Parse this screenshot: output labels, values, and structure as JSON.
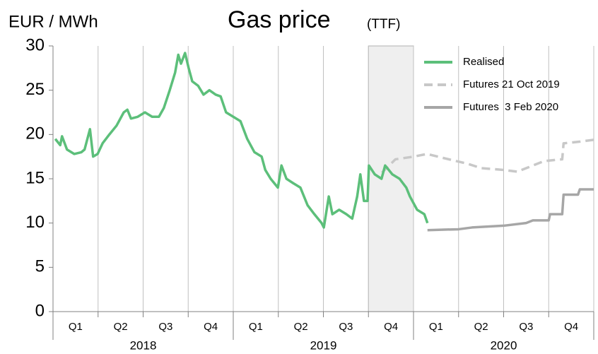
{
  "chart_data": {
    "type": "line",
    "title": "Gas price",
    "title_suffix": "(TTF)",
    "y_label": "EUR / MWh",
    "categories": [
      "Q1",
      "Q2",
      "Q3",
      "Q4",
      "Q1",
      "Q2",
      "Q3",
      "Q4",
      "Q1",
      "Q2",
      "Q3",
      "Q4"
    ],
    "years": [
      "2018",
      "2019",
      "2020"
    ],
    "xlim": [
      0,
      12
    ],
    "xticks": [
      0,
      1,
      2,
      3,
      4,
      5,
      6,
      7,
      8,
      9,
      10,
      11,
      12
    ],
    "ylim": [
      0,
      30
    ],
    "yticks": [
      0,
      5,
      10,
      15,
      20,
      25,
      30
    ],
    "highlight": [
      7,
      8
    ],
    "highlight_color": "#efefef",
    "legend": "top-right",
    "series": [
      {
        "name": "Realised",
        "color": "#5cbf7a",
        "dash": false,
        "x": [
          0.05,
          0.16,
          0.2,
          0.31,
          0.47,
          0.63,
          0.7,
          0.82,
          0.89,
          0.99,
          1.1,
          1.25,
          1.41,
          1.57,
          1.65,
          1.73,
          1.88,
          2.04,
          2.2,
          2.35,
          2.46,
          2.59,
          2.71,
          2.78,
          2.84,
          2.93,
          3.01,
          3.09,
          3.22,
          3.34,
          3.47,
          3.61,
          3.72,
          3.84,
          4.0,
          4.16,
          4.31,
          4.47,
          4.63,
          4.71,
          4.83,
          4.99,
          5.07,
          5.18,
          5.33,
          5.49,
          5.65,
          5.8,
          5.96,
          6.01,
          6.12,
          6.2,
          6.35,
          6.51,
          6.64,
          6.75,
          6.82,
          6.9,
          6.98,
          7.01,
          7.14,
          7.29,
          7.37,
          7.53,
          7.69,
          7.84,
          7.92,
          8.08,
          8.24,
          8.31
        ],
        "values": [
          19.5,
          18.8,
          19.8,
          18.3,
          17.8,
          18,
          18.3,
          20.6,
          17.5,
          17.8,
          19,
          20,
          21,
          22.5,
          22.8,
          21.8,
          22,
          22.5,
          22,
          22,
          23,
          25,
          27,
          29,
          28,
          29.2,
          27.5,
          26,
          25.5,
          24.5,
          25,
          24.5,
          24.3,
          22.5,
          22,
          21.5,
          19.5,
          18,
          17.5,
          16,
          15,
          14,
          16.5,
          15,
          14.5,
          14,
          12,
          11,
          10,
          9.5,
          13,
          11,
          11.5,
          11,
          10.5,
          13,
          15.5,
          12.5,
          12.5,
          16.5,
          15.5,
          15,
          16.5,
          15.5,
          15,
          14,
          13,
          11.5,
          11,
          10
        ]
      },
      {
        "name": "Futures 21 Oct 2019",
        "color": "#c8c8c8",
        "dash": true,
        "x": [
          7.3,
          7.6,
          8.0,
          8.3,
          8.7,
          9.2,
          9.5,
          10.0,
          10.3,
          10.5,
          10.9,
          11.3,
          11.33,
          11.7,
          12
        ],
        "values": [
          15.7,
          17.2,
          17.5,
          17.8,
          17.3,
          16.7,
          16.2,
          16,
          15.8,
          16.2,
          17,
          17.2,
          19,
          19.2,
          19.4
        ]
      },
      {
        "name": "Futures  3 Feb 2020",
        "color": "#a6a6a6",
        "dash": false,
        "x": [
          8.31,
          9.0,
          9.3,
          10.0,
          10.5,
          10.65,
          11.0,
          11.03,
          11.3,
          11.33,
          11.65,
          11.69,
          12
        ],
        "values": [
          9.2,
          9.3,
          9.5,
          9.7,
          10,
          10.3,
          10.3,
          11,
          11,
          13.2,
          13.2,
          13.8,
          13.8
        ]
      }
    ]
  }
}
